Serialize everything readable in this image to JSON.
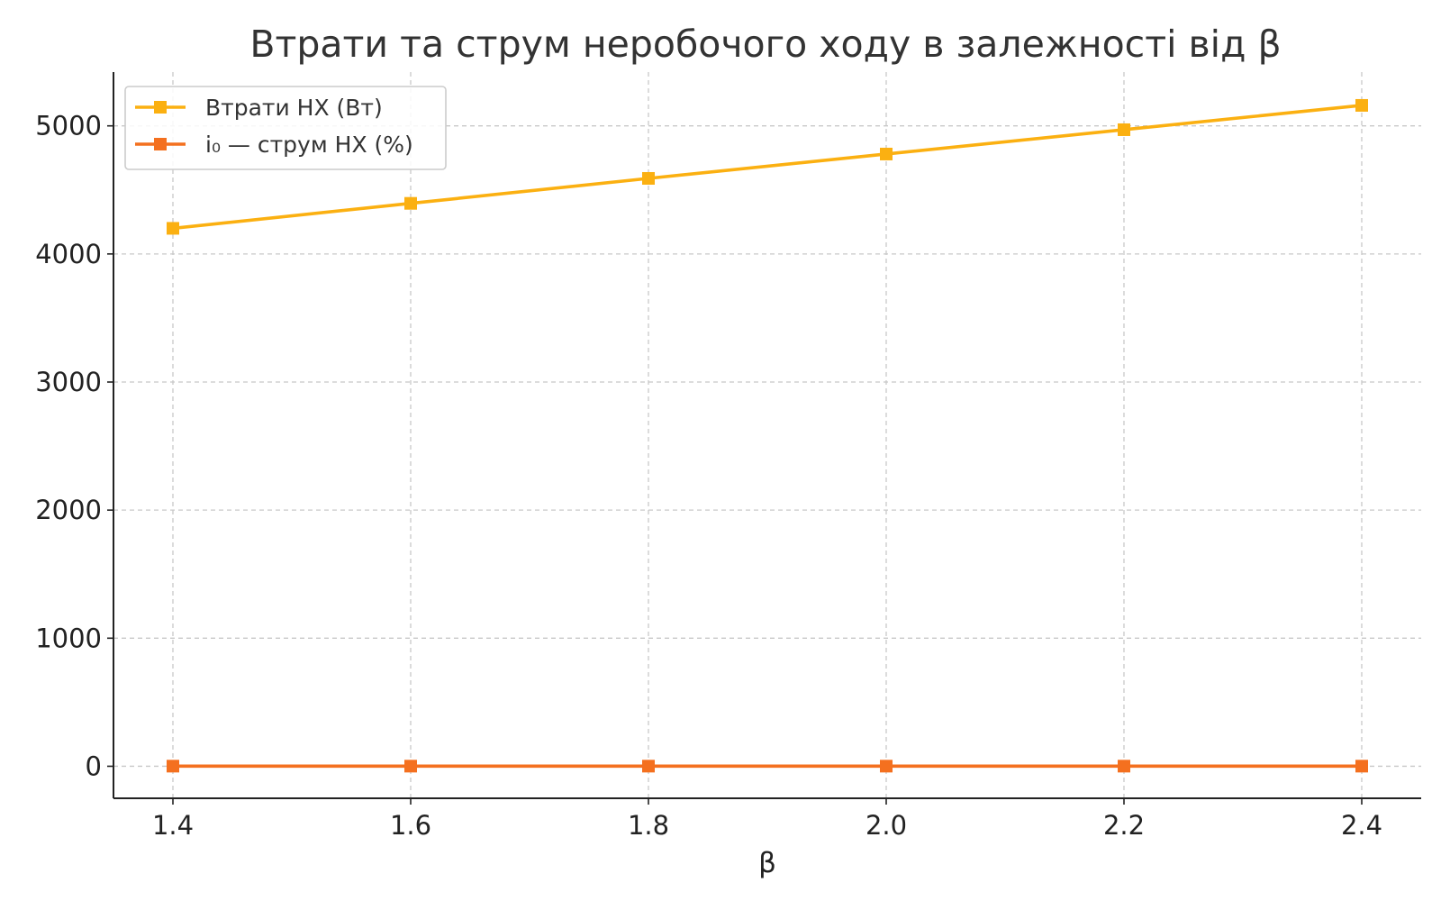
{
  "chart_data": {
    "type": "line",
    "title": "Втрати та струм неробочого ходу в залежності від β",
    "xlabel": "β",
    "ylabel": "",
    "x": [
      1.4,
      1.6,
      1.8,
      2.0,
      2.2,
      2.4
    ],
    "x_ticks": [
      "1.4",
      "1.6",
      "1.8",
      "2.0",
      "2.2",
      "2.4"
    ],
    "xlim": [
      1.35,
      2.45
    ],
    "y_ticks": [
      "0",
      "1000",
      "2000",
      "3000",
      "4000",
      "5000"
    ],
    "ylim": [
      -250,
      5420
    ],
    "grid": true,
    "legend_position": "top-left",
    "series": [
      {
        "name": "Втрати НХ (Вт)",
        "color": "#FBB011",
        "marker": "square",
        "values": [
          4200,
          4395,
          4590,
          4780,
          4970,
          5160
        ]
      },
      {
        "name": "i₀ — струм НХ (%)",
        "color": "#F4701F",
        "marker": "square",
        "values": [
          1.0,
          1.0,
          1.0,
          1.0,
          1.0,
          1.0
        ]
      }
    ]
  }
}
